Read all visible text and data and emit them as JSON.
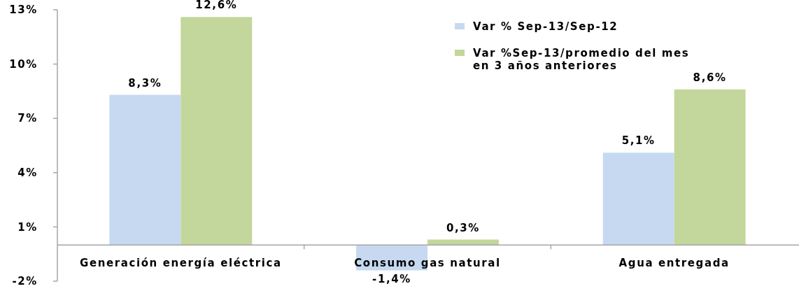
{
  "chart_data": {
    "type": "bar",
    "categories": [
      "Generación energía eléctrica",
      "Consumo gas natural",
      "Agua entregada"
    ],
    "series": [
      {
        "name": "Var % Sep-13/Sep-12",
        "color": "#c6d9f1",
        "values": [
          8.3,
          -1.4,
          5.1
        ],
        "value_labels": [
          "8,3%",
          "-1,4%",
          "5,1%"
        ]
      },
      {
        "name": "Var %Sep-13/promedio del mes en 3 años anteriores",
        "color": "#c3d69b",
        "values": [
          12.6,
          0.3,
          8.6
        ],
        "value_labels": [
          "12,6%",
          "0,3%",
          "8,6%"
        ]
      }
    ],
    "ylim": [
      -2,
      13
    ],
    "yticks": [
      {
        "value": -2,
        "label": "-2%"
      },
      {
        "value": 1,
        "label": "1%"
      },
      {
        "value": 4,
        "label": "4%"
      },
      {
        "value": 7,
        "label": "7%"
      },
      {
        "value": 10,
        "label": "10%"
      },
      {
        "value": 13,
        "label": "13%"
      }
    ],
    "legend": "top right"
  }
}
